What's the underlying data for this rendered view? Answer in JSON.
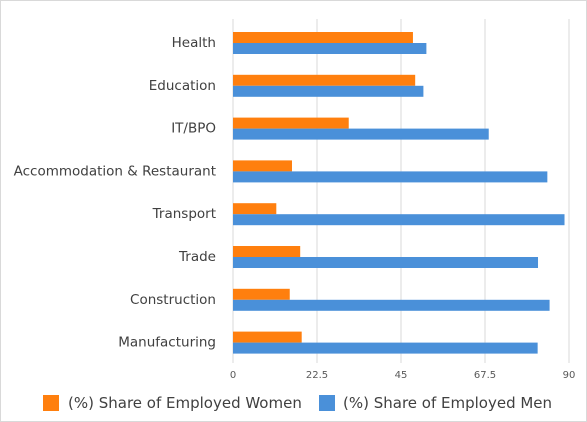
{
  "chart_data": {
    "type": "bar",
    "orientation": "horizontal",
    "categories": [
      "Health",
      "Education",
      "IT/BPO",
      "Accommodation & Restaurant",
      "Transport",
      "Trade",
      "Construction",
      "Manufacturing"
    ],
    "series": [
      {
        "name": "(%) Share of Employed Women",
        "color": "#ff7f0e",
        "values": [
          48.2,
          48.8,
          31.0,
          15.8,
          11.6,
          18.0,
          15.2,
          18.4
        ]
      },
      {
        "name": "(%) Share of Employed Men",
        "color": "#4a90d9",
        "values": [
          51.8,
          51.0,
          68.5,
          84.2,
          88.8,
          81.7,
          84.8,
          81.6
        ]
      }
    ],
    "xlim": [
      0,
      90
    ],
    "xticks": [
      0,
      22.5,
      45,
      67.5,
      90
    ],
    "xtick_labels": [
      "0",
      "22.5",
      "45",
      "67.5",
      "90"
    ],
    "grid": "vertical",
    "legend": "bottom",
    "title": "",
    "xlabel": "",
    "ylabel": ""
  }
}
